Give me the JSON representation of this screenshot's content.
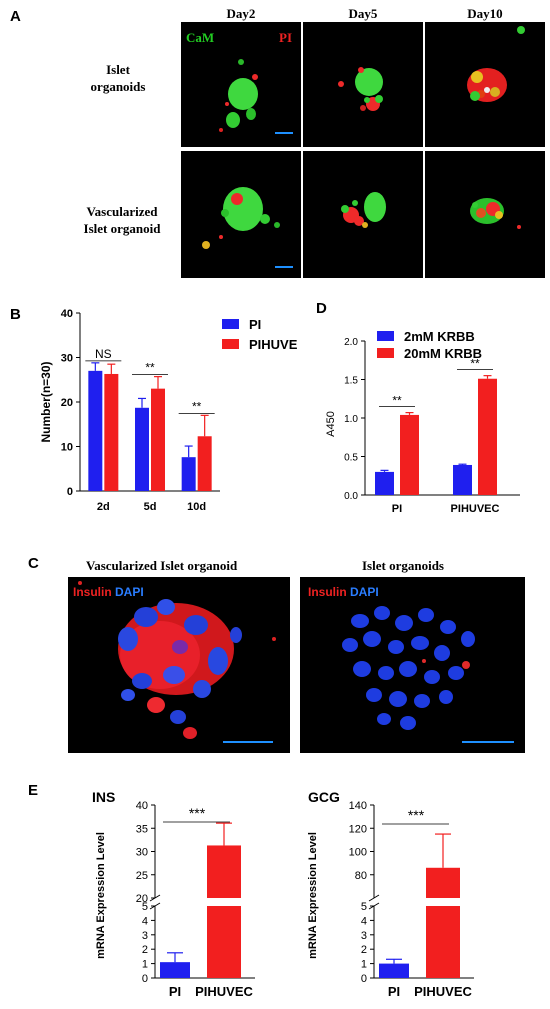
{
  "panels": {
    "A": {
      "label": "A",
      "columns": [
        "Day2",
        "Day5",
        "Day10"
      ],
      "rows": [
        "Islet\norganoids",
        "Vascularized\nIslet organoid"
      ],
      "stain_green": "CaM",
      "stain_red": "PI"
    },
    "B": {
      "label": "B"
    },
    "C": {
      "label": "C",
      "left_title": "Vascularized  Islet organoid",
      "right_title": "Islet organoids",
      "stain_red": "Insulin",
      "stain_blue": "DAPI"
    },
    "D": {
      "label": "D"
    },
    "E": {
      "label": "E"
    }
  },
  "colors": {
    "blue": "#1f1fef",
    "red": "#f21f1f",
    "cam_green": "#22cc22",
    "dapi_blue": "#1a4dff"
  },
  "chart_data": [
    {
      "id": "B",
      "type": "bar",
      "categories": [
        "2d",
        "5d",
        "10d"
      ],
      "series": [
        {
          "name": "PI",
          "values": [
            27,
            18.7,
            7.6
          ],
          "errors": [
            1.8,
            2.1,
            2.5
          ],
          "color": "#1f1fef"
        },
        {
          "name": "PIHUVE",
          "values": [
            26.3,
            23,
            12.3
          ],
          "errors": [
            2.2,
            2.7,
            4.7
          ],
          "color": "#f21f1f"
        }
      ],
      "significance": [
        "NS",
        "**",
        "**"
      ],
      "ylabel": "Number(n=30)",
      "ylim": [
        0,
        40
      ],
      "yticks": [
        0,
        10,
        20,
        30,
        40
      ],
      "legend": "top-right"
    },
    {
      "id": "D",
      "type": "bar",
      "categories": [
        "PI",
        "PIHUVEC"
      ],
      "series": [
        {
          "name": "2mM KRBB",
          "values": [
            0.3,
            0.39
          ],
          "errors": [
            0.02,
            0.01
          ],
          "color": "#1f1fef"
        },
        {
          "name": "20mM KRBB",
          "values": [
            1.04,
            1.51
          ],
          "errors": [
            0.03,
            0.04
          ],
          "color": "#f21f1f"
        }
      ],
      "significance": [
        "**",
        "**"
      ],
      "ylabel": "A450",
      "ylim": [
        0,
        2.0
      ],
      "yticks": [
        "0.0",
        "0.5",
        "1.0",
        "1.5",
        "2.0"
      ],
      "legend": "top-left"
    },
    {
      "id": "E-INS",
      "type": "bar",
      "title": "INS",
      "categories": [
        "PI",
        "PIHUVEC"
      ],
      "values": [
        1.1,
        31.3
      ],
      "errors": [
        0.65,
        4.8
      ],
      "colors": [
        "#1f1fef",
        "#f21f1f"
      ],
      "significance": "***",
      "ylabel": "mRNA Expression Level",
      "ylim_lower": [
        0,
        5
      ],
      "ylim_upper": [
        20,
        40
      ],
      "yticks_lower": [
        0,
        1,
        2,
        3,
        4,
        5
      ],
      "yticks_upper": [
        20,
        25,
        30,
        35,
        40
      ]
    },
    {
      "id": "E-GCG",
      "type": "bar",
      "title": "GCG",
      "categories": [
        "PI",
        "PIHUVEC"
      ],
      "values": [
        1.0,
        86
      ],
      "errors": [
        0.3,
        29
      ],
      "colors": [
        "#1f1fef",
        "#f21f1f"
      ],
      "significance": "***",
      "ylabel": "mRNA Expression Level",
      "ylim_lower": [
        0,
        5
      ],
      "ylim_upper": [
        60,
        140
      ],
      "yticks_lower": [
        0,
        1,
        2,
        3,
        4,
        5
      ],
      "yticks_upper": [
        80,
        100,
        120,
        140
      ]
    }
  ]
}
